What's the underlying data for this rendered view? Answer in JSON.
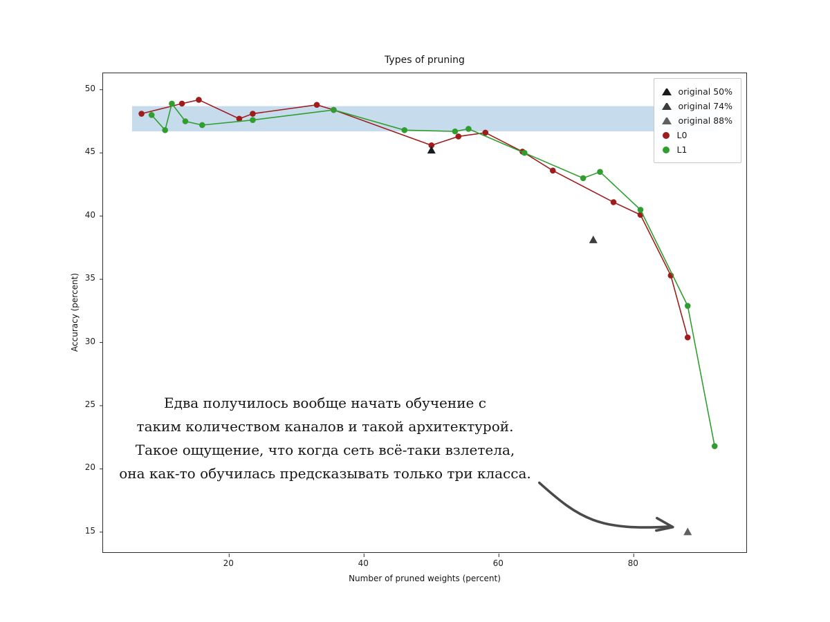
{
  "title": "Types of pruning",
  "xlabel": "Number of pruned weights (percent)",
  "ylabel": "Accuracy (percent)",
  "annotation": {
    "lines": [
      "Едва получилось вообще начать обучение с",
      "таким количеством каналов и такой архитектурой.",
      "Такое ощущение, что когда сеть всё-таки взлетела,",
      "она как-то обучилась предсказывать только три класса."
    ]
  },
  "chart_data": {
    "type": "line",
    "title": "Types of pruning",
    "xlabel": "Number of pruned weights (percent)",
    "ylabel": "Accuracy (percent)",
    "xlim": [
      1.3,
      96.9
    ],
    "ylim": [
      13.3,
      51.3
    ],
    "xticks": [
      20,
      40,
      60,
      80
    ],
    "yticks": [
      15,
      20,
      25,
      30,
      35,
      40,
      45,
      50
    ],
    "grid": false,
    "legend_position": "upper right",
    "band": {
      "x0": 5.6,
      "x1": 92.5,
      "y0": 46.7,
      "y1": 48.7,
      "color": "#b8d2e6"
    },
    "series": [
      {
        "name": "L0",
        "color": "#9f1c1c",
        "marker": "circle",
        "points": [
          [
            7,
            48.1
          ],
          [
            13,
            48.9
          ],
          [
            15.5,
            49.2
          ],
          [
            21.5,
            47.7
          ],
          [
            23.5,
            48.1
          ],
          [
            33,
            48.8
          ],
          [
            35.5,
            48.4
          ],
          [
            50,
            45.6
          ],
          [
            54,
            46.3
          ],
          [
            58,
            46.6
          ],
          [
            63.5,
            45.1
          ],
          [
            68,
            43.6
          ],
          [
            77,
            41.1
          ],
          [
            81,
            40.1
          ],
          [
            85.5,
            35.3
          ],
          [
            88,
            30.4
          ]
        ]
      },
      {
        "name": "L1",
        "color": "#2f9e2f",
        "marker": "circle",
        "points": [
          [
            8.5,
            48.0
          ],
          [
            10.5,
            46.8
          ],
          [
            11.5,
            48.9
          ],
          [
            13.5,
            47.5
          ],
          [
            16,
            47.2
          ],
          [
            23.5,
            47.6
          ],
          [
            35.5,
            48.4
          ],
          [
            46,
            46.8
          ],
          [
            53.5,
            46.7
          ],
          [
            55.5,
            46.9
          ],
          [
            63.8,
            45.0
          ],
          [
            72.5,
            43.0
          ],
          [
            75,
            43.5
          ],
          [
            81,
            40.5
          ],
          [
            88,
            32.9
          ],
          [
            92,
            21.8
          ]
        ]
      }
    ],
    "point_markers": [
      {
        "name": "original 50%",
        "x": 50,
        "y": 45.2,
        "color": "#1a1a1a"
      },
      {
        "name": "original 74%",
        "x": 74,
        "y": 38.1,
        "color": "#3c3c3c"
      },
      {
        "name": "original 88%",
        "x": 88,
        "y": 15.0,
        "color": "#606060"
      }
    ],
    "legend": [
      {
        "label": "original 50%",
        "marker": "triangle",
        "color": "#1a1a1a"
      },
      {
        "label": "original 74%",
        "marker": "triangle",
        "color": "#3c3c3c"
      },
      {
        "label": "original 88%",
        "marker": "triangle",
        "color": "#606060"
      },
      {
        "label": "L0",
        "marker": "circle",
        "color": "#9f1c1c"
      },
      {
        "label": "L1",
        "marker": "circle",
        "color": "#2f9e2f"
      }
    ],
    "arrow": {
      "x1": 66.0,
      "y1": 18.9,
      "x2": 85.6,
      "y2": 15.45,
      "color": "#4a4a4a"
    }
  }
}
